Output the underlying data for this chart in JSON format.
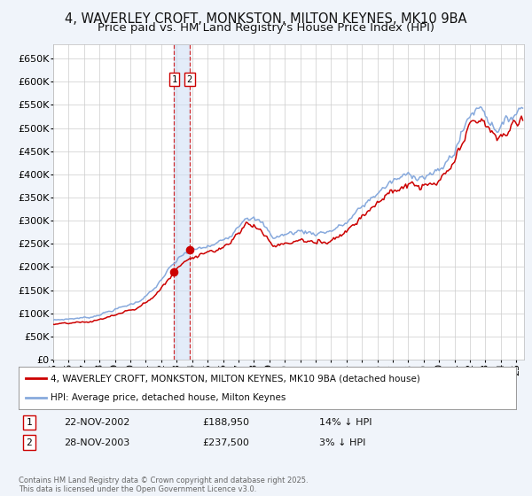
{
  "title_line1": "4, WAVERLEY CROFT, MONKSTON, MILTON KEYNES, MK10 9BA",
  "title_line2": "Price paid vs. HM Land Registry's House Price Index (HPI)",
  "legend_line1": "4, WAVERLEY CROFT, MONKSTON, MILTON KEYNES, MK10 9BA (detached house)",
  "legend_line2": "HPI: Average price, detached house, Milton Keynes",
  "sale1_date": "22-NOV-2002",
  "sale1_price": 188950,
  "sale1_hpi_diff": "14% ↓ HPI",
  "sale2_date": "28-NOV-2003",
  "sale2_price": 237500,
  "sale2_hpi_diff": "3% ↓ HPI",
  "copyright_text": "Contains HM Land Registry data © Crown copyright and database right 2025.\nThis data is licensed under the Open Government Licence v3.0.",
  "price_line_color": "#cc0000",
  "hpi_line_color": "#88aadd",
  "background_color": "#f0f4fa",
  "plot_bg_color": "#ffffff",
  "grid_color": "#cccccc",
  "title_fontsize": 10.5,
  "subtitle_fontsize": 9.5,
  "tick_fontsize": 8,
  "ylim": [
    0,
    680000
  ],
  "ytick_step": 50000,
  "sale_marker_color": "#cc0000",
  "dashed_line_color": "#cc0000",
  "shade_color": "#ccddf5"
}
